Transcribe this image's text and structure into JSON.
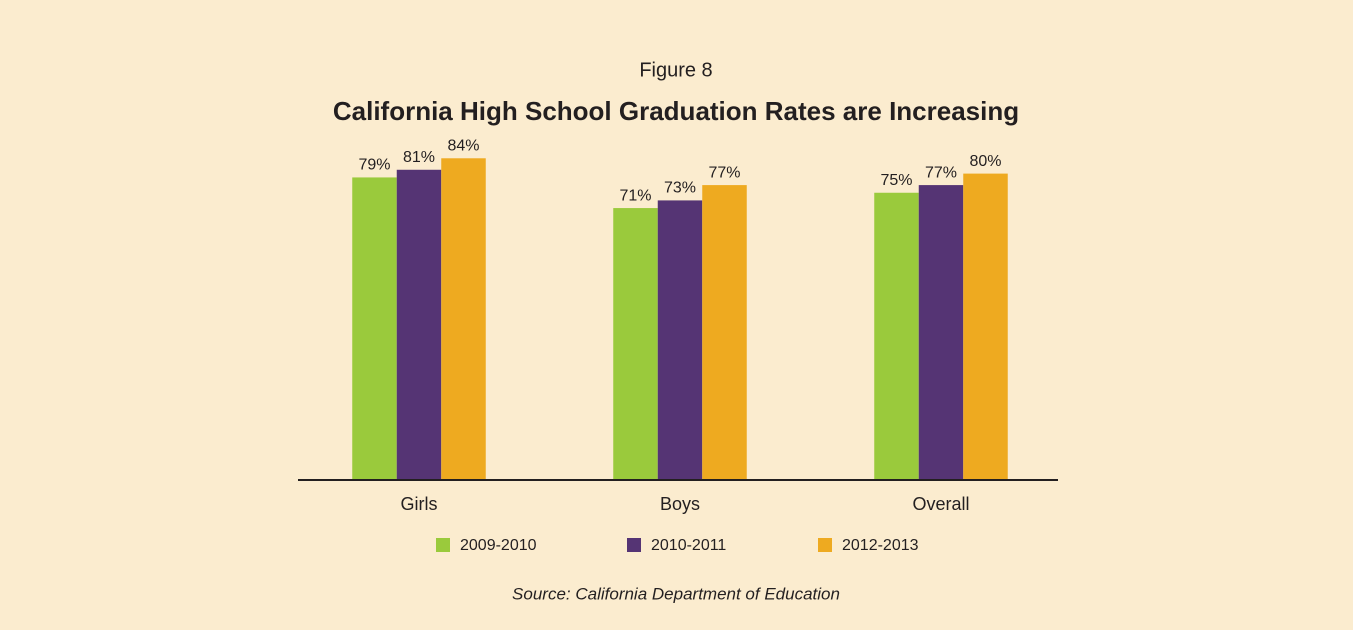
{
  "chart_data": {
    "type": "bar",
    "figure_label": "Figure 8",
    "title": "California High School Graduation Rates are Increasing",
    "source": "Source: California Department of Education",
    "categories": [
      "Girls",
      "Boys",
      "Overall"
    ],
    "series": [
      {
        "name": "2009-2010",
        "color": "#9aca3c",
        "values": [
          79,
          71,
          75
        ],
        "value_labels": [
          "79%",
          "71%",
          "75%"
        ]
      },
      {
        "name": "2010-2011",
        "color": "#553474",
        "values": [
          81,
          73,
          77
        ],
        "value_labels": [
          "81%",
          "73%",
          "77%"
        ]
      },
      {
        "name": "2012-2013",
        "color": "#eeaa20",
        "values": [
          84,
          77,
          80
        ],
        "value_labels": [
          "84%",
          "77%",
          "80%"
        ]
      }
    ],
    "ylim": [
      0,
      100
    ],
    "grid": false
  }
}
